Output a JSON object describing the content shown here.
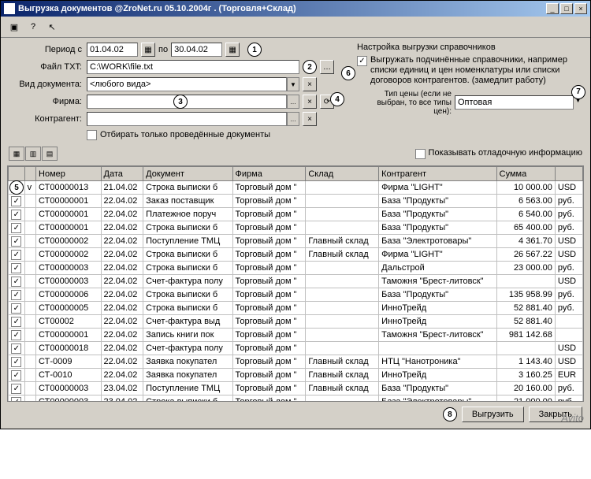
{
  "window": {
    "title": "Выгрузка документов  @ZroNet.ru 05.10.2004г .  (Торговля+Склад)"
  },
  "form": {
    "period_label": "Период с",
    "period_from": "01.04.02",
    "period_to_label": "по",
    "period_to": "30.04.02",
    "file_label": "Файл TXT:",
    "file_value": "C:\\WORK\\file.txt",
    "doctype_label": "Вид документа:",
    "doctype_value": "<любого вида>",
    "firm_label": "Фирма:",
    "firm_value": "",
    "contragent_label": "Контрагент:",
    "contragent_value": "",
    "only_posted_label": "Отбирать только проведённые документы"
  },
  "right": {
    "heading": "Настройка выгрузки справочников",
    "export_sub_label": "Выгружать подчинённые справочники, например списки единиц и цен номенклатуры или списки договоров контрагентов.  (замедлит работу)",
    "price_label": "Тип цены (если не выбран, то все типы цен):",
    "price_value": "Оптовая",
    "show_debug_label": "Показывать отладочную информацию"
  },
  "grid": {
    "columns": [
      "",
      "",
      "Номер",
      "Дата",
      "Документ",
      "Фирма",
      "Склад",
      "Контрагент",
      "Сумма",
      ""
    ],
    "col_widths": [
      "18px",
      "14px",
      "80px",
      "52px",
      "110px",
      "90px",
      "90px",
      "145px",
      "72px",
      "34px"
    ],
    "rows": [
      {
        "c": true,
        "v": "v",
        "num": "СТ00000013",
        "date": "21.04.02",
        "doc": "Строка выписки б",
        "firm": "Торговый дом \"",
        "wh": "",
        "ctr": "Фирма \"LIGHT\"",
        "sum": "10 000.00",
        "cur": "USD"
      },
      {
        "c": true,
        "v": "",
        "num": "СТ00000001",
        "date": "22.04.02",
        "doc": "Заказ поставщик",
        "firm": "Торговый дом \"",
        "wh": "",
        "ctr": "База \"Продукты\"",
        "sum": "6 563.00",
        "cur": "руб."
      },
      {
        "c": true,
        "v": "",
        "num": "СТ00000001",
        "date": "22.04.02",
        "doc": "Платежное поруч",
        "firm": "Торговый дом \"",
        "wh": "",
        "ctr": "База \"Продукты\"",
        "sum": "6 540.00",
        "cur": "руб."
      },
      {
        "c": true,
        "v": "",
        "num": "СТ00000001",
        "date": "22.04.02",
        "doc": "Строка выписки б",
        "firm": "Торговый дом \"",
        "wh": "",
        "ctr": "База \"Продукты\"",
        "sum": "65 400.00",
        "cur": "руб."
      },
      {
        "c": true,
        "v": "",
        "num": "СТ00000002",
        "date": "22.04.02",
        "doc": "Поступление ТМЦ",
        "firm": "Торговый дом \"",
        "wh": "Главный склад",
        "ctr": "База \"Электротовары\"",
        "sum": "4 361.70",
        "cur": "USD"
      },
      {
        "c": true,
        "v": "",
        "num": "СТ00000002",
        "date": "22.04.02",
        "doc": "Строка выписки б",
        "firm": "Торговый дом \"",
        "wh": "Главный склад",
        "ctr": "Фирма \"LIGHT\"",
        "sum": "26 567.22",
        "cur": "USD"
      },
      {
        "c": true,
        "v": "",
        "num": "СТ00000003",
        "date": "22.04.02",
        "doc": "Строка выписки б",
        "firm": "Торговый дом \"",
        "wh": "",
        "ctr": "Дальстрой",
        "sum": "23 000.00",
        "cur": "руб."
      },
      {
        "c": true,
        "v": "",
        "num": "СТ00000003",
        "date": "22.04.02",
        "doc": "Счет-фактура полу",
        "firm": "Торговый дом \"",
        "wh": "",
        "ctr": "Таможня \"Брест-литовск\"",
        "sum": "",
        "cur": "USD"
      },
      {
        "c": true,
        "v": "",
        "num": "СТ00000006",
        "date": "22.04.02",
        "doc": "Строка выписки б",
        "firm": "Торговый дом \"",
        "wh": "",
        "ctr": "База \"Продукты\"",
        "sum": "135 958.99",
        "cur": "руб."
      },
      {
        "c": true,
        "v": "",
        "num": "СТ00000005",
        "date": "22.04.02",
        "doc": "Строка выписки б",
        "firm": "Торговый дом \"",
        "wh": "",
        "ctr": "ИнноТрейд",
        "sum": "52 881.40",
        "cur": "руб."
      },
      {
        "c": true,
        "v": "",
        "num": "СТ00002",
        "date": "22.04.02",
        "doc": "Счет-фактура выд",
        "firm": "Торговый дом \"",
        "wh": "",
        "ctr": "ИнноТрейд",
        "sum": "52 881.40",
        "cur": ""
      },
      {
        "c": true,
        "v": "",
        "num": "СТ00000001",
        "date": "22.04.02",
        "doc": "Запись книги пок",
        "firm": "Торговый дом \"",
        "wh": "",
        "ctr": "Таможня \"Брест-литовск\"",
        "sum": "981 142.68",
        "cur": ""
      },
      {
        "c": true,
        "v": "",
        "num": "СТ00000018",
        "date": "22.04.02",
        "doc": "Счет-фактура полу",
        "firm": "Торговый дом \"",
        "wh": "",
        "ctr": "",
        "sum": "",
        "cur": "USD"
      },
      {
        "c": true,
        "v": "",
        "num": "СТ-0009",
        "date": "22.04.02",
        "doc": "Заявка покупател",
        "firm": "Торговый дом \"",
        "wh": "Главный склад",
        "ctr": "НТЦ \"Нанотроника\"",
        "sum": "1 143.40",
        "cur": "USD"
      },
      {
        "c": true,
        "v": "",
        "num": "СТ-0010",
        "date": "22.04.02",
        "doc": "Заявка покупател",
        "firm": "Торговый дом \"",
        "wh": "Главный склад",
        "ctr": "ИнноТрейд",
        "sum": "3 160.25",
        "cur": "EUR"
      },
      {
        "c": true,
        "v": "",
        "num": "СТ00000003",
        "date": "23.04.02",
        "doc": "Поступление ТМЦ",
        "firm": "Торговый дом \"",
        "wh": "Главный склад",
        "ctr": "База \"Продукты\"",
        "sum": "20 160.00",
        "cur": "руб."
      },
      {
        "c": true,
        "v": "",
        "num": "СТ00000003",
        "date": "23.04.02",
        "doc": "Строка выписки б",
        "firm": "Торговый дом \"",
        "wh": "",
        "ctr": "База \"Электротовары\"",
        "sum": "21 000.00",
        "cur": "руб."
      }
    ]
  },
  "footer": {
    "export_btn": "Выгрузить",
    "close_btn": "Закрыть"
  },
  "callouts": [
    "1",
    "2",
    "3",
    "4",
    "5",
    "6",
    "7",
    "8"
  ],
  "watermark": "Avito"
}
